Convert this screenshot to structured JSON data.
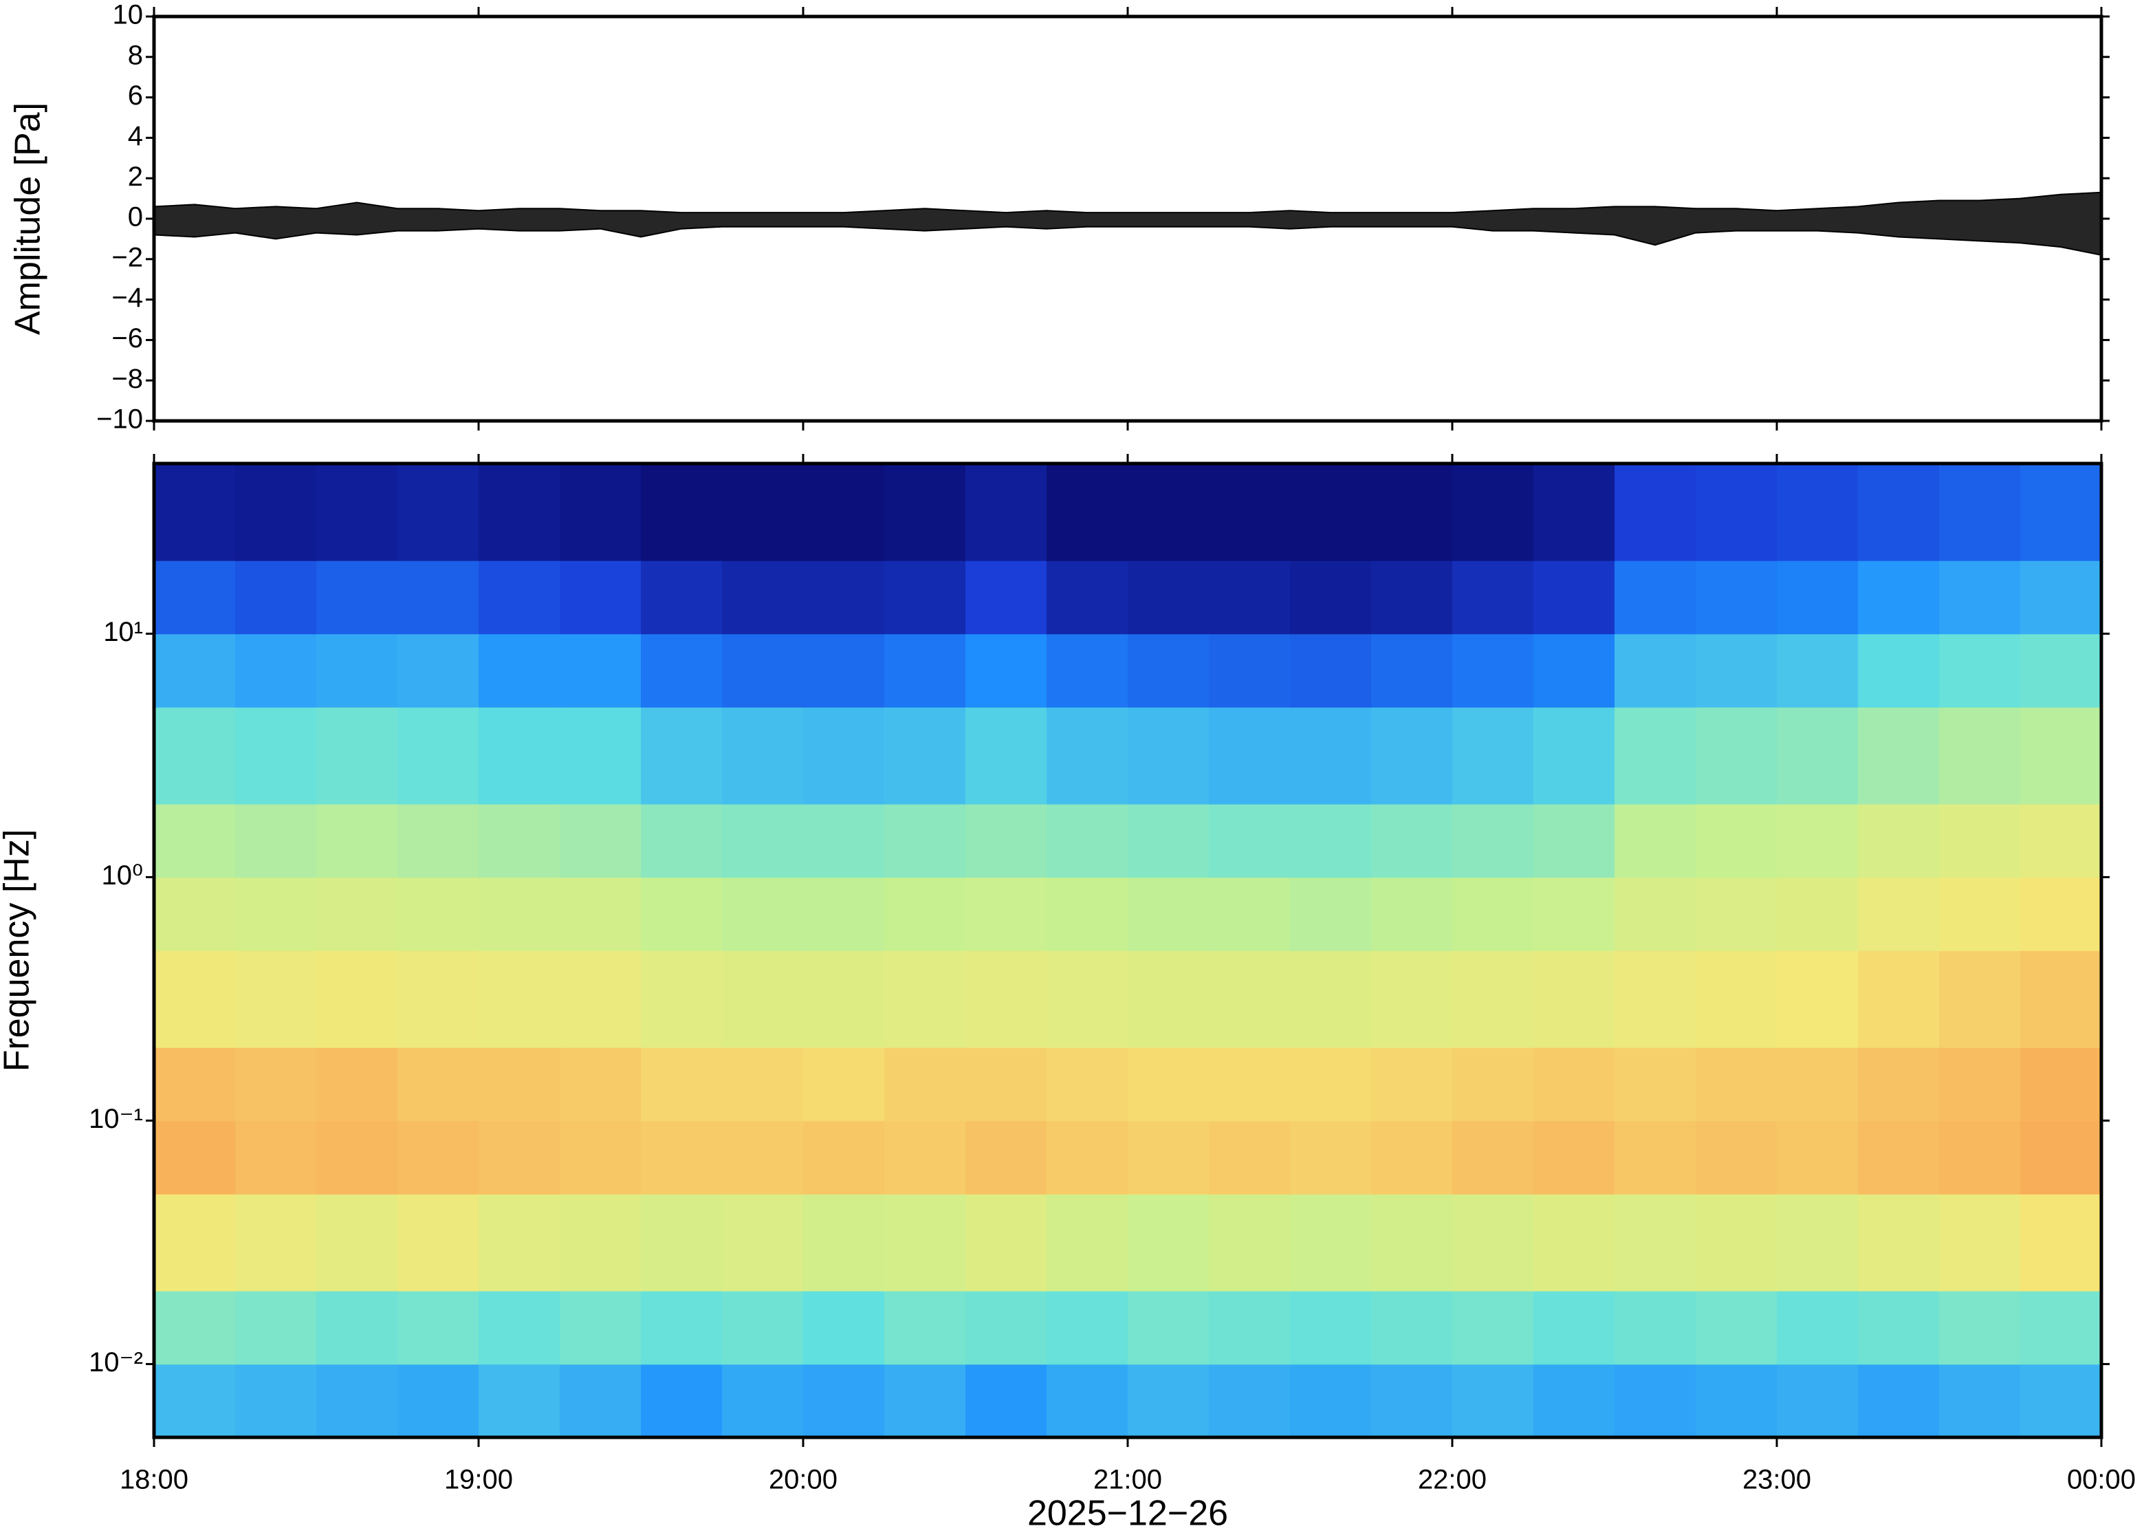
{
  "chart_data": [
    {
      "type": "area",
      "ylabel": "Amplitude [Pa]",
      "color": "#000000",
      "xlim": [
        18,
        24
      ],
      "ylim": [
        -10,
        10
      ],
      "yticks": [
        {
          "value": -10,
          "label": "−10"
        },
        {
          "value": -8,
          "label": "−8"
        },
        {
          "value": -6,
          "label": "−6"
        },
        {
          "value": -4,
          "label": "−4"
        },
        {
          "value": -2,
          "label": "−2"
        },
        0,
        2,
        4,
        6,
        8,
        10
      ],
      "x": [
        18,
        18.125,
        18.25,
        18.375,
        18.5,
        18.625,
        18.75,
        18.875,
        19,
        19.125,
        19.25,
        19.375,
        19.5,
        19.625,
        19.75,
        19.875,
        20,
        20.125,
        20.25,
        20.375,
        20.5,
        20.625,
        20.75,
        20.875,
        21,
        21.125,
        21.25,
        21.375,
        21.5,
        21.625,
        21.75,
        21.875,
        22,
        22.125,
        22.25,
        22.375,
        22.5,
        22.625,
        22.75,
        22.875,
        23,
        23.125,
        23.25,
        23.375,
        23.5,
        23.625,
        23.75,
        23.875,
        24
      ],
      "upper": [
        0.6,
        0.7,
        0.5,
        0.6,
        0.5,
        0.8,
        0.5,
        0.5,
        0.4,
        0.5,
        0.5,
        0.4,
        0.4,
        0.3,
        0.3,
        0.3,
        0.3,
        0.3,
        0.4,
        0.5,
        0.4,
        0.3,
        0.4,
        0.3,
        0.3,
        0.3,
        0.3,
        0.3,
        0.4,
        0.3,
        0.3,
        0.3,
        0.3,
        0.4,
        0.5,
        0.5,
        0.6,
        0.6,
        0.5,
        0.5,
        0.4,
        0.5,
        0.6,
        0.8,
        0.9,
        0.9,
        1.0,
        1.2,
        1.3
      ],
      "lower": [
        -0.8,
        -0.9,
        -0.7,
        -1.0,
        -0.7,
        -0.8,
        -0.6,
        -0.6,
        -0.5,
        -0.6,
        -0.6,
        -0.5,
        -0.9,
        -0.5,
        -0.4,
        -0.4,
        -0.4,
        -0.4,
        -0.5,
        -0.6,
        -0.5,
        -0.4,
        -0.5,
        -0.4,
        -0.4,
        -0.4,
        -0.4,
        -0.4,
        -0.5,
        -0.4,
        -0.4,
        -0.4,
        -0.4,
        -0.6,
        -0.6,
        -0.7,
        -0.8,
        -1.3,
        -0.7,
        -0.6,
        -0.6,
        -0.6,
        -0.7,
        -0.9,
        -1.0,
        -1.1,
        -1.2,
        -1.4,
        -1.8
      ]
    },
    {
      "type": "heatmap",
      "ylabel": "Frequency [Hz]",
      "xlabel": "2025−12−26",
      "yscale": "log",
      "xlim": [
        18,
        24
      ],
      "ylim": [
        0.005,
        50
      ],
      "xticks": [
        {
          "value": 18,
          "label": "18:00"
        },
        {
          "value": 19,
          "label": "19:00"
        },
        {
          "value": 20,
          "label": "20:00"
        },
        {
          "value": 21,
          "label": "21:00"
        },
        {
          "value": 22,
          "label": "22:00"
        },
        {
          "value": 23,
          "label": "23:00"
        },
        {
          "value": 24,
          "label": "00:00"
        }
      ],
      "yticks": [
        {
          "value": 0.01,
          "label": "10⁻²"
        },
        {
          "value": 0.1,
          "label": "10⁻¹"
        },
        {
          "value": 1,
          "label": "10⁰"
        },
        {
          "value": 10,
          "label": "10¹"
        }
      ],
      "colormap": [
        "#08086b",
        "#1a3fd9",
        "#1e90ff",
        "#5fe0e0",
        "#c8f090",
        "#f5e878",
        "#f9a050",
        "#e8504a"
      ],
      "time_bins": [
        18,
        18.25,
        18.5,
        18.75,
        19,
        19.25,
        19.5,
        19.75,
        20,
        20.25,
        20.5,
        20.75,
        21,
        21.25,
        21.5,
        21.75,
        22,
        22.25,
        22.5,
        22.75,
        23,
        23.25,
        23.5,
        23.75,
        24
      ],
      "freq_bins": [
        0.005,
        0.01,
        0.02,
        0.05,
        0.1,
        0.2,
        0.5,
        1,
        2,
        5,
        10,
        20,
        50
      ],
      "z": [
        [
          0.36,
          0.35,
          0.34,
          0.33,
          0.36,
          0.34,
          0.3,
          0.33,
          0.32,
          0.34,
          0.3,
          0.33,
          0.35,
          0.34,
          0.33,
          0.34,
          0.35,
          0.33,
          0.32,
          0.33,
          0.34,
          0.32,
          0.34,
          0.35
        ],
        [
          0.48,
          0.47,
          0.45,
          0.46,
          0.44,
          0.46,
          0.44,
          0.45,
          0.43,
          0.46,
          0.45,
          0.44,
          0.46,
          0.45,
          0.44,
          0.45,
          0.46,
          0.44,
          0.45,
          0.46,
          0.44,
          0.45,
          0.47,
          0.46
        ],
        [
          0.7,
          0.68,
          0.66,
          0.69,
          0.65,
          0.64,
          0.62,
          0.63,
          0.6,
          0.61,
          0.64,
          0.6,
          0.58,
          0.6,
          0.59,
          0.6,
          0.62,
          0.64,
          0.63,
          0.64,
          0.63,
          0.66,
          0.68,
          0.72
        ],
        [
          0.82,
          0.8,
          0.81,
          0.8,
          0.79,
          0.78,
          0.77,
          0.77,
          0.78,
          0.77,
          0.79,
          0.77,
          0.76,
          0.77,
          0.76,
          0.77,
          0.79,
          0.8,
          0.78,
          0.79,
          0.78,
          0.8,
          0.81,
          0.83
        ],
        [
          0.8,
          0.79,
          0.8,
          0.78,
          0.78,
          0.77,
          0.75,
          0.75,
          0.74,
          0.76,
          0.76,
          0.75,
          0.74,
          0.74,
          0.74,
          0.75,
          0.76,
          0.77,
          0.76,
          0.77,
          0.77,
          0.79,
          0.8,
          0.82
        ],
        [
          0.7,
          0.69,
          0.7,
          0.69,
          0.68,
          0.68,
          0.65,
          0.64,
          0.64,
          0.65,
          0.66,
          0.65,
          0.64,
          0.64,
          0.64,
          0.65,
          0.66,
          0.67,
          0.69,
          0.7,
          0.71,
          0.74,
          0.76,
          0.78
        ],
        [
          0.62,
          0.61,
          0.62,
          0.61,
          0.6,
          0.6,
          0.57,
          0.56,
          0.56,
          0.57,
          0.58,
          0.57,
          0.56,
          0.56,
          0.55,
          0.56,
          0.57,
          0.58,
          0.62,
          0.63,
          0.64,
          0.68,
          0.7,
          0.72
        ],
        [
          0.55,
          0.54,
          0.55,
          0.54,
          0.53,
          0.52,
          0.49,
          0.48,
          0.48,
          0.49,
          0.5,
          0.49,
          0.48,
          0.47,
          0.47,
          0.48,
          0.49,
          0.5,
          0.56,
          0.57,
          0.58,
          0.62,
          0.64,
          0.66
        ],
        [
          0.45,
          0.44,
          0.45,
          0.44,
          0.42,
          0.42,
          0.38,
          0.37,
          0.36,
          0.37,
          0.4,
          0.37,
          0.36,
          0.35,
          0.35,
          0.36,
          0.38,
          0.4,
          0.47,
          0.48,
          0.49,
          0.52,
          0.54,
          0.55
        ],
        [
          0.34,
          0.32,
          0.33,
          0.34,
          0.3,
          0.3,
          0.24,
          0.22,
          0.22,
          0.24,
          0.28,
          0.24,
          0.22,
          0.21,
          0.2,
          0.22,
          0.24,
          0.26,
          0.36,
          0.37,
          0.38,
          0.42,
          0.44,
          0.45
        ],
        [
          0.2,
          0.18,
          0.2,
          0.2,
          0.17,
          0.15,
          0.1,
          0.08,
          0.08,
          0.09,
          0.14,
          0.08,
          0.07,
          0.07,
          0.06,
          0.07,
          0.1,
          0.12,
          0.24,
          0.25,
          0.26,
          0.3,
          0.32,
          0.34
        ],
        [
          0.06,
          0.05,
          0.06,
          0.07,
          0.05,
          0.04,
          0.02,
          0.02,
          0.02,
          0.03,
          0.06,
          0.02,
          0.02,
          0.02,
          0.02,
          0.02,
          0.03,
          0.05,
          0.14,
          0.15,
          0.16,
          0.18,
          0.2,
          0.22
        ]
      ]
    }
  ]
}
